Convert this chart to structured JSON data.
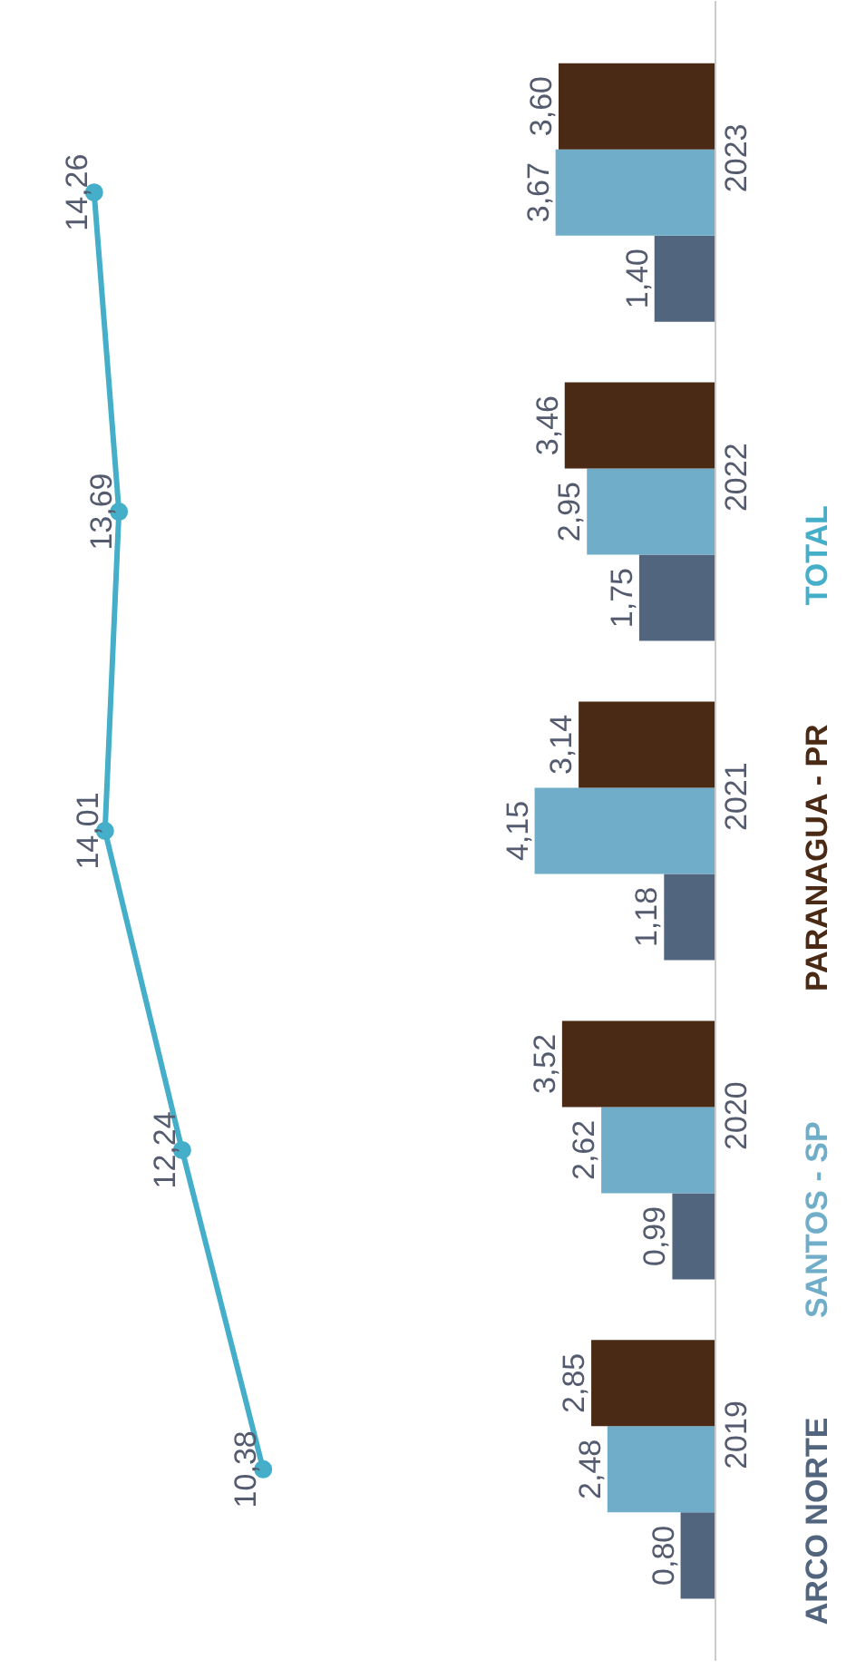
{
  "chart_data": {
    "type": "bar",
    "orientation": "horizontal",
    "categories": [
      "2023",
      "2022",
      "2021",
      "2020",
      "2019"
    ],
    "tick_labels": "y",
    "legend": "right",
    "marker": "circle",
    "series": [
      {
        "name": "ARCO NORTE",
        "color": "#52657f",
        "values": [
          1.4,
          1.75,
          1.18,
          0.99,
          0.8
        ],
        "value_labels": [
          "1,40",
          "1,75",
          "1,18",
          "0,99",
          "0,80"
        ]
      },
      {
        "name": "SANTOS - SP",
        "color": "#6fadc9",
        "values": [
          3.67,
          2.95,
          4.15,
          2.62,
          2.48
        ],
        "value_labels": [
          "3,67",
          "2,95",
          "4,15",
          "2,62",
          "2,48"
        ]
      },
      {
        "name": "PARANAGUA - PR",
        "color": "#4a2a14",
        "values": [
          3.6,
          3.46,
          3.14,
          3.52,
          2.85
        ],
        "value_labels": [
          "3,60",
          "3,46",
          "3,14",
          "3,52",
          "2,85"
        ]
      },
      {
        "name": "TOTAL",
        "type": "line",
        "color": "#45aec9",
        "values": [
          14.26,
          13.69,
          14.01,
          12.24,
          10.38
        ],
        "value_labels": [
          "14,26",
          "13,69",
          "14,01",
          "12,24",
          "10,38"
        ]
      }
    ]
  }
}
